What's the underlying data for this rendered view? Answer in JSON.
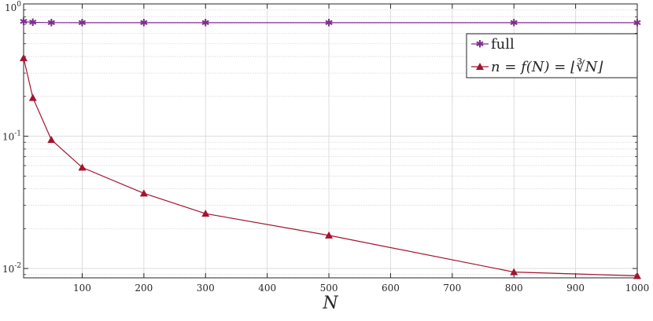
{
  "chart_data": {
    "type": "line",
    "title": "",
    "xlabel": "N",
    "ylabel": "",
    "yscale": "log",
    "xlim": [
      5,
      1000
    ],
    "ylim": [
      0.0085,
      1
    ],
    "grid": true,
    "minor_grid": true,
    "legend_position": "top-right",
    "x": [
      5,
      20,
      50,
      100,
      200,
      300,
      500,
      800,
      900,
      1000
    ],
    "x_ticks": [
      100,
      200,
      300,
      400,
      500,
      600,
      700,
      800,
      900,
      1000
    ],
    "x_tick_labels": [
      "100",
      "200",
      "300",
      "400",
      "500",
      "600",
      "700",
      "800",
      "900",
      "1000"
    ],
    "y_tick_labels": [
      {
        "base": "10",
        "exp": "0"
      },
      {
        "base": "10",
        "exp": "-1"
      },
      {
        "base": "10",
        "exp": "-2"
      }
    ],
    "series": [
      {
        "name": "full",
        "color": "#7E2F8E",
        "marker": "star",
        "x": [
          5,
          20,
          50,
          100,
          200,
          300,
          500,
          800,
          1000
        ],
        "values": [
          0.735,
          0.725,
          0.722,
          0.721,
          0.721,
          0.721,
          0.721,
          0.721,
          0.721
        ]
      },
      {
        "name": "n = f(N) = ⌊∛N⌋",
        "color": "#A2142F",
        "marker": "triangle",
        "x": [
          5,
          20,
          50,
          100,
          200,
          300,
          500,
          800,
          1000
        ],
        "values": [
          0.39,
          0.195,
          0.094,
          0.058,
          0.037,
          0.026,
          0.0178,
          0.0094,
          0.0088
        ]
      }
    ],
    "extra_series_points_note": ""
  }
}
